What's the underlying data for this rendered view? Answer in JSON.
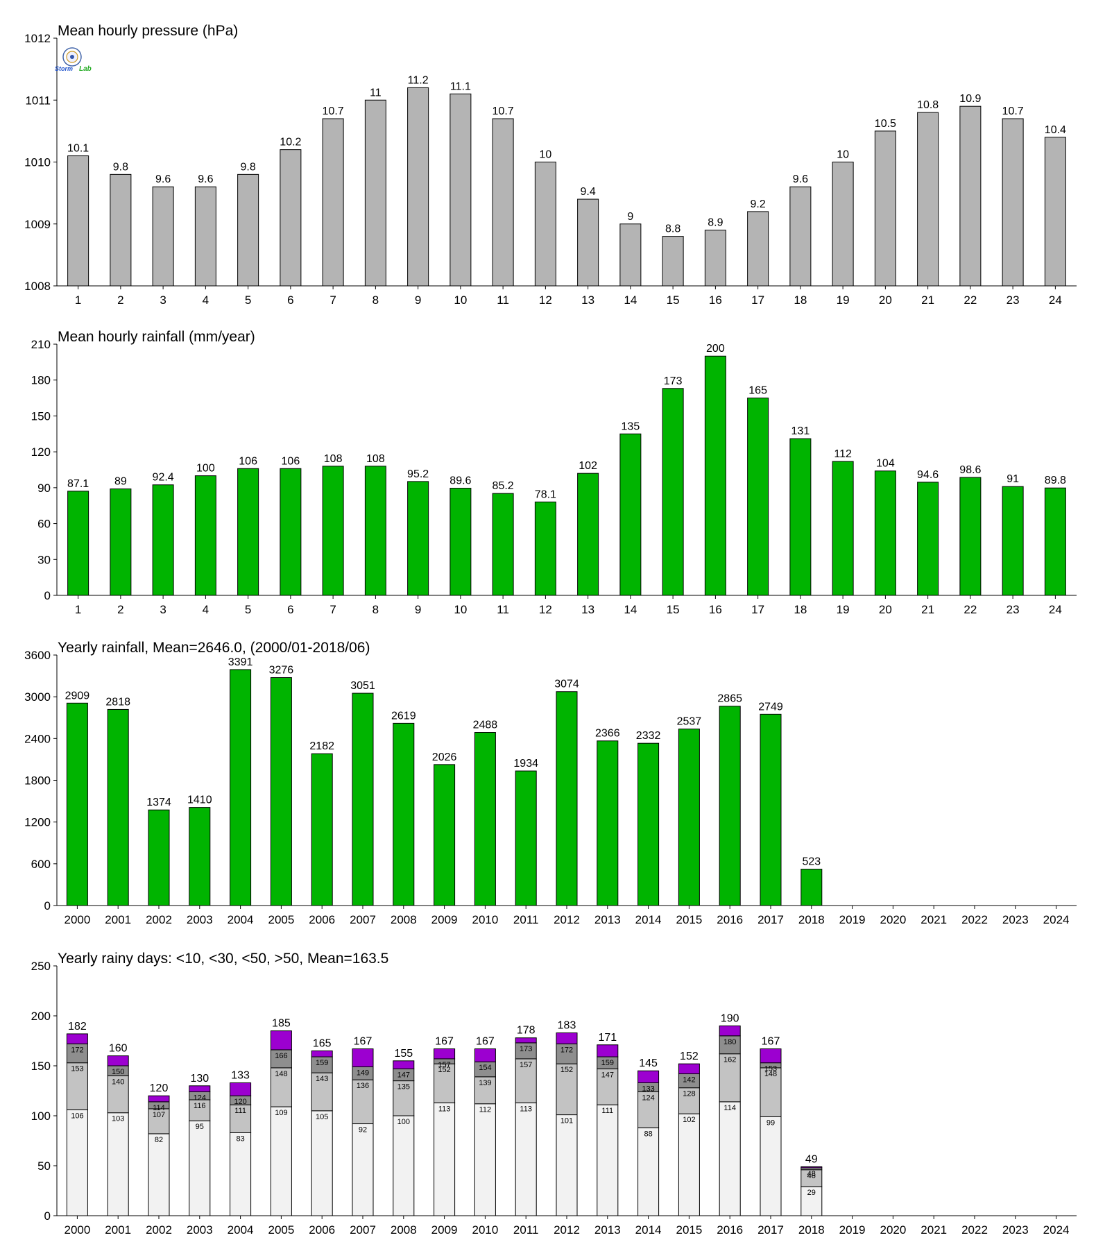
{
  "logo": {
    "text_left": "Storm",
    "text_right": "Lab"
  },
  "colors": {
    "pressure_bar": "#b4b4b4",
    "rain_bar": "#00b400",
    "days_lt10": "#f2f2f2",
    "days_lt30": "#c3c3c3",
    "days_lt50": "#8e8e8e",
    "days_gt50": "#9c00d0",
    "logo_left": "#2255cc",
    "logo_right": "#22aa22"
  },
  "chart_data": [
    {
      "type": "bar",
      "title": "Mean hourly pressure (hPa)",
      "categories": [
        "1",
        "2",
        "3",
        "4",
        "5",
        "6",
        "7",
        "8",
        "9",
        "10",
        "11",
        "12",
        "13",
        "14",
        "15",
        "16",
        "17",
        "18",
        "19",
        "20",
        "21",
        "22",
        "23",
        "24"
      ],
      "values": [
        1010.1,
        1009.8,
        1009.6,
        1009.6,
        1009.8,
        1010.2,
        1010.7,
        1011.0,
        1011.2,
        1011.1,
        1010.7,
        1010.0,
        1009.4,
        1009.0,
        1008.8,
        1008.9,
        1009.2,
        1009.6,
        1010.0,
        1010.5,
        1010.8,
        1010.9,
        1010.7,
        1010.4
      ],
      "labels": [
        "10.1",
        "9.8",
        "9.6",
        "9.6",
        "9.8",
        "10.2",
        "10.7",
        "11",
        "11.2",
        "11.1",
        "10.7",
        "10",
        "9.4",
        "9",
        "8.8",
        "8.9",
        "9.2",
        "9.6",
        "10",
        "10.5",
        "10.8",
        "10.9",
        "10.7",
        "10.4"
      ],
      "ylim": [
        1008,
        1012
      ],
      "yticks": [
        "1008",
        "1009",
        "1010",
        "1011",
        "1012"
      ],
      "grid": false
    },
    {
      "type": "bar",
      "title": "Mean hourly rainfall (mm/year)",
      "categories": [
        "1",
        "2",
        "3",
        "4",
        "5",
        "6",
        "7",
        "8",
        "9",
        "10",
        "11",
        "12",
        "13",
        "14",
        "15",
        "16",
        "17",
        "18",
        "19",
        "20",
        "21",
        "22",
        "23",
        "24"
      ],
      "values": [
        87.1,
        89,
        92.4,
        100,
        106,
        106,
        108,
        108,
        95.2,
        89.6,
        85.2,
        78.1,
        102,
        135,
        173,
        200,
        165,
        131,
        112,
        104,
        94.6,
        98.6,
        91,
        89.8
      ],
      "labels": [
        "87.1",
        "89",
        "92.4",
        "100",
        "106",
        "106",
        "108",
        "108",
        "95.2",
        "89.6",
        "85.2",
        "78.1",
        "102",
        "135",
        "173",
        "200",
        "165",
        "131",
        "112",
        "104",
        "94.6",
        "98.6",
        "91",
        "89.8"
      ],
      "ylim": [
        0,
        210
      ],
      "yticks": [
        "0",
        "30",
        "60",
        "90",
        "120",
        "150",
        "180",
        "210"
      ],
      "grid": false
    },
    {
      "type": "bar",
      "title": "Yearly rainfall, Mean=2646.0, (2000/01-2018/06)",
      "categories": [
        "2000",
        "2001",
        "2002",
        "2003",
        "2004",
        "2005",
        "2006",
        "2007",
        "2008",
        "2009",
        "2010",
        "2011",
        "2012",
        "2013",
        "2014",
        "2015",
        "2016",
        "2017",
        "2018",
        "2019",
        "2020",
        "2021",
        "2022",
        "2023",
        "2024"
      ],
      "values": [
        2909,
        2818,
        1374,
        1410,
        3391,
        3276,
        2182,
        3051,
        2619,
        2026,
        2488,
        1934,
        3074,
        2366,
        2332,
        2537,
        2865,
        2749,
        523,
        null,
        null,
        null,
        null,
        null,
        null
      ],
      "labels": [
        "2909",
        "2818",
        "1374",
        "1410",
        "3391",
        "3276",
        "2182",
        "3051",
        "2619",
        "2026",
        "2488",
        "1934",
        "3074",
        "2366",
        "2332",
        "2537",
        "2865",
        "2749",
        "523",
        "",
        "",
        "",
        "",
        "",
        ""
      ],
      "ylim": [
        0,
        3600
      ],
      "yticks": [
        "0",
        "600",
        "1200",
        "1800",
        "2400",
        "3000",
        "3600"
      ],
      "grid": false
    },
    {
      "type": "bar",
      "stacked": true,
      "title": "Yearly rainy days: <10, <30, <50, >50, Mean=163.5",
      "categories": [
        "2000",
        "2001",
        "2002",
        "2003",
        "2004",
        "2005",
        "2006",
        "2007",
        "2008",
        "2009",
        "2010",
        "2011",
        "2012",
        "2013",
        "2014",
        "2015",
        "2016",
        "2017",
        "2018",
        "2019",
        "2020",
        "2021",
        "2022",
        "2023",
        "2024"
      ],
      "cumulative": {
        "lt10": [
          106,
          103,
          82,
          95,
          83,
          109,
          105,
          92,
          100,
          113,
          112,
          113,
          101,
          111,
          88,
          102,
          114,
          99,
          29,
          null,
          null,
          null,
          null,
          null,
          null
        ],
        "lt30": [
          153,
          140,
          107,
          116,
          111,
          148,
          143,
          136,
          135,
          152,
          139,
          157,
          152,
          147,
          124,
          128,
          162,
          148,
          46,
          null,
          null,
          null,
          null,
          null,
          null
        ],
        "lt50": [
          172,
          150,
          114,
          124,
          120,
          166,
          159,
          149,
          147,
          157,
          154,
          173,
          172,
          159,
          133,
          142,
          180,
          153,
          48,
          null,
          null,
          null,
          null,
          null,
          null
        ],
        "total": [
          182,
          160,
          120,
          130,
          133,
          185,
          165,
          167,
          155,
          167,
          167,
          178,
          183,
          171,
          145,
          152,
          190,
          167,
          49,
          null,
          null,
          null,
          null,
          null,
          null
        ]
      },
      "ylim": [
        0,
        250
      ],
      "yticks": [
        "0",
        "50",
        "100",
        "150",
        "200",
        "250"
      ],
      "grid": false
    }
  ]
}
